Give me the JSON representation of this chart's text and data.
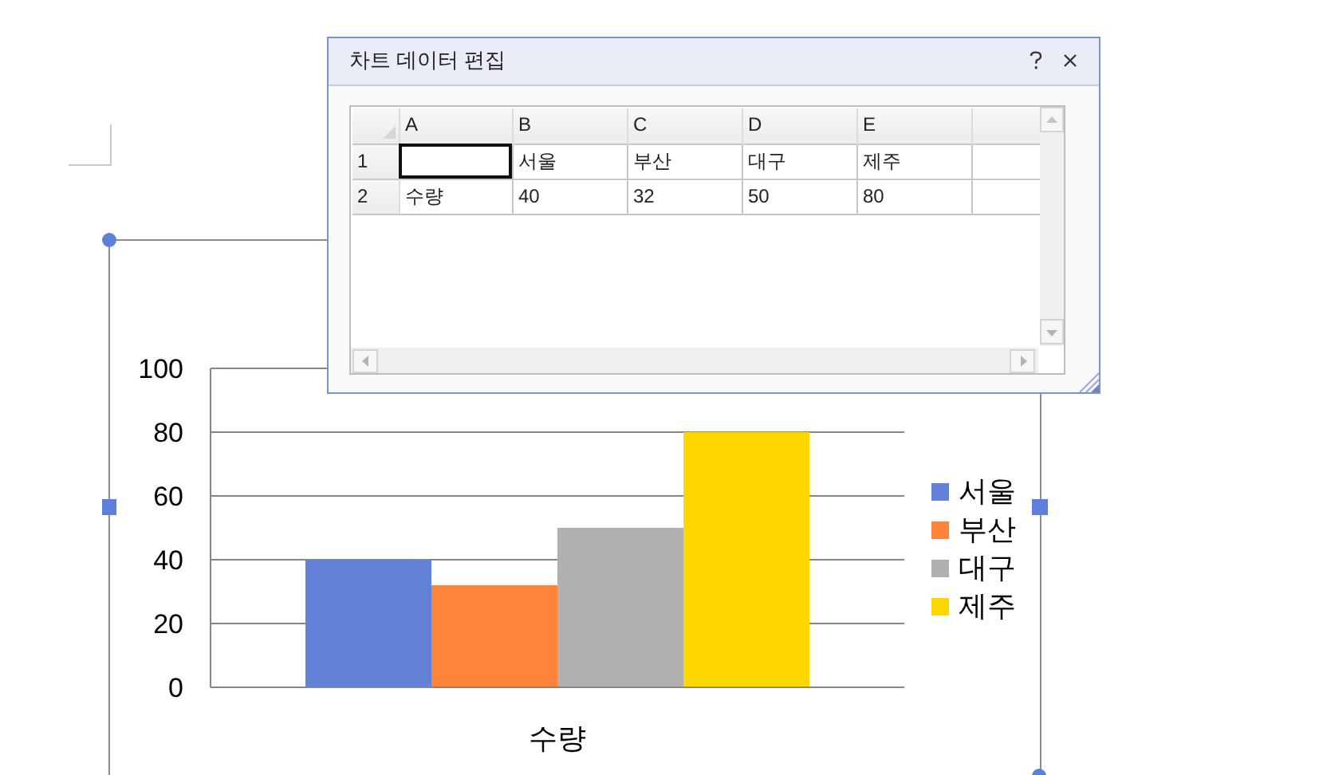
{
  "chart_data": [
    {
      "type": "bar",
      "categories": [
        "수량"
      ],
      "series": [
        {
          "name": "서울",
          "color": "#6182d6",
          "values": [
            40
          ]
        },
        {
          "name": "부산",
          "color": "#ff8439",
          "values": [
            32
          ]
        },
        {
          "name": "대구",
          "color": "#b0b0b0",
          "values": [
            50
          ]
        },
        {
          "name": "제주",
          "color": "#ffd700",
          "values": [
            80
          ]
        }
      ],
      "ylim": [
        0,
        100
      ],
      "yticks": [
        0,
        20,
        40,
        60,
        80,
        100
      ],
      "grid": "y",
      "legend": "right"
    },
    {
      "type": "other",
      "title": "차트 데이터 편집",
      "annotations": [
        "A",
        "B",
        "C",
        "D",
        "E",
        "1",
        "서울",
        "부산",
        "대구",
        "제주",
        "2",
        "수량",
        "40",
        "32",
        "50",
        "80"
      ]
    }
  ]
}
